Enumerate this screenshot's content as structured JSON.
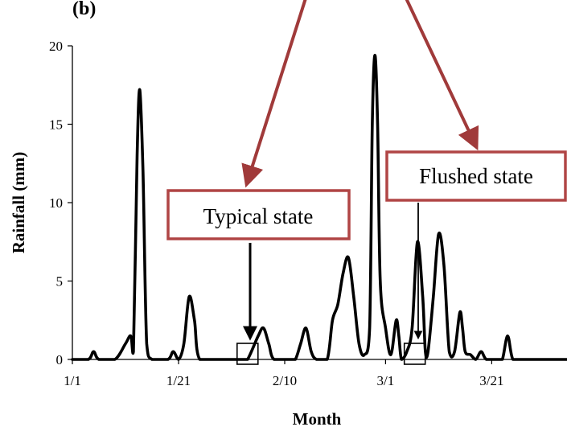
{
  "panel_label": "(b)",
  "colors": {
    "line": "#000000",
    "annotation_border": "#b04545",
    "pointer_arrow": "#a03a3a"
  },
  "chart_data": {
    "type": "line",
    "title": "",
    "xlabel": "Month",
    "ylabel": "Rainfall (mm)",
    "x_unit": "date",
    "ylim": [
      0,
      20
    ],
    "yticks": [
      0,
      5,
      10,
      15,
      20
    ],
    "xticks": [
      {
        "label": "1/1",
        "day": 1
      },
      {
        "label": "1/21",
        "day": 21
      },
      {
        "label": "2/10",
        "day": 41
      },
      {
        "label": "3/1",
        "day": 60
      },
      {
        "label": "3/21",
        "day": 80
      }
    ],
    "xlim_day": [
      1,
      95
    ],
    "grid": false,
    "legend": "none",
    "series": [
      {
        "values": [
          [
            1,
            0
          ],
          [
            4,
            0
          ],
          [
            5,
            0.5
          ],
          [
            6,
            0
          ],
          [
            9,
            0
          ],
          [
            11,
            1
          ],
          [
            12,
            1.5
          ],
          [
            12.5,
            0.5
          ],
          [
            13.2,
            13
          ],
          [
            13.7,
            17.2
          ],
          [
            14.3,
            12
          ],
          [
            15,
            1
          ],
          [
            16,
            0
          ],
          [
            19,
            0
          ],
          [
            20,
            0.5
          ],
          [
            21,
            0
          ],
          [
            22,
            1
          ],
          [
            23,
            4
          ],
          [
            24,
            2.5
          ],
          [
            25,
            0
          ],
          [
            29,
            0
          ],
          [
            31,
            0
          ],
          [
            32,
            0
          ],
          [
            33,
            0
          ],
          [
            34,
            0
          ],
          [
            36,
            1.5
          ],
          [
            37,
            2
          ],
          [
            38,
            1
          ],
          [
            39,
            0
          ],
          [
            42,
            0
          ],
          [
            43,
            0
          ],
          [
            44,
            1
          ],
          [
            45,
            2
          ],
          [
            46,
            0.5
          ],
          [
            47,
            0
          ],
          [
            49,
            0
          ],
          [
            50,
            2.5
          ],
          [
            51,
            3.5
          ],
          [
            52,
            5.5
          ],
          [
            53,
            6.5
          ],
          [
            54,
            4
          ],
          [
            55,
            1
          ],
          [
            56,
            0.3
          ],
          [
            57,
            2
          ],
          [
            57.5,
            15
          ],
          [
            58,
            19.4
          ],
          [
            58.5,
            15
          ],
          [
            59,
            5
          ],
          [
            60,
            2
          ],
          [
            61,
            0.3
          ],
          [
            62,
            2.5
          ],
          [
            62.5,
            1.5
          ],
          [
            63,
            0
          ],
          [
            64,
            0.5
          ],
          [
            65,
            2
          ],
          [
            66,
            7.5
          ],
          [
            67,
            4
          ],
          [
            67.5,
            0.5
          ],
          [
            68,
            0.5
          ],
          [
            69,
            4
          ],
          [
            70,
            8
          ],
          [
            71,
            6
          ],
          [
            72,
            0.5
          ],
          [
            73,
            0.5
          ],
          [
            74,
            3
          ],
          [
            74.5,
            2
          ],
          [
            75,
            0.5
          ],
          [
            76,
            0.3
          ],
          [
            77,
            0
          ],
          [
            78,
            0.5
          ],
          [
            79,
            0
          ],
          [
            81,
            0
          ],
          [
            82,
            0
          ],
          [
            83,
            1.5
          ],
          [
            84,
            0
          ],
          [
            86,
            0
          ],
          [
            95,
            0
          ]
        ]
      }
    ],
    "annotations": [
      {
        "text": "Typical state",
        "marker_day": 34,
        "marker_mm": 0
      },
      {
        "text": "Flushed state",
        "marker_day": 65.5,
        "marker_mm": 0
      }
    ]
  }
}
